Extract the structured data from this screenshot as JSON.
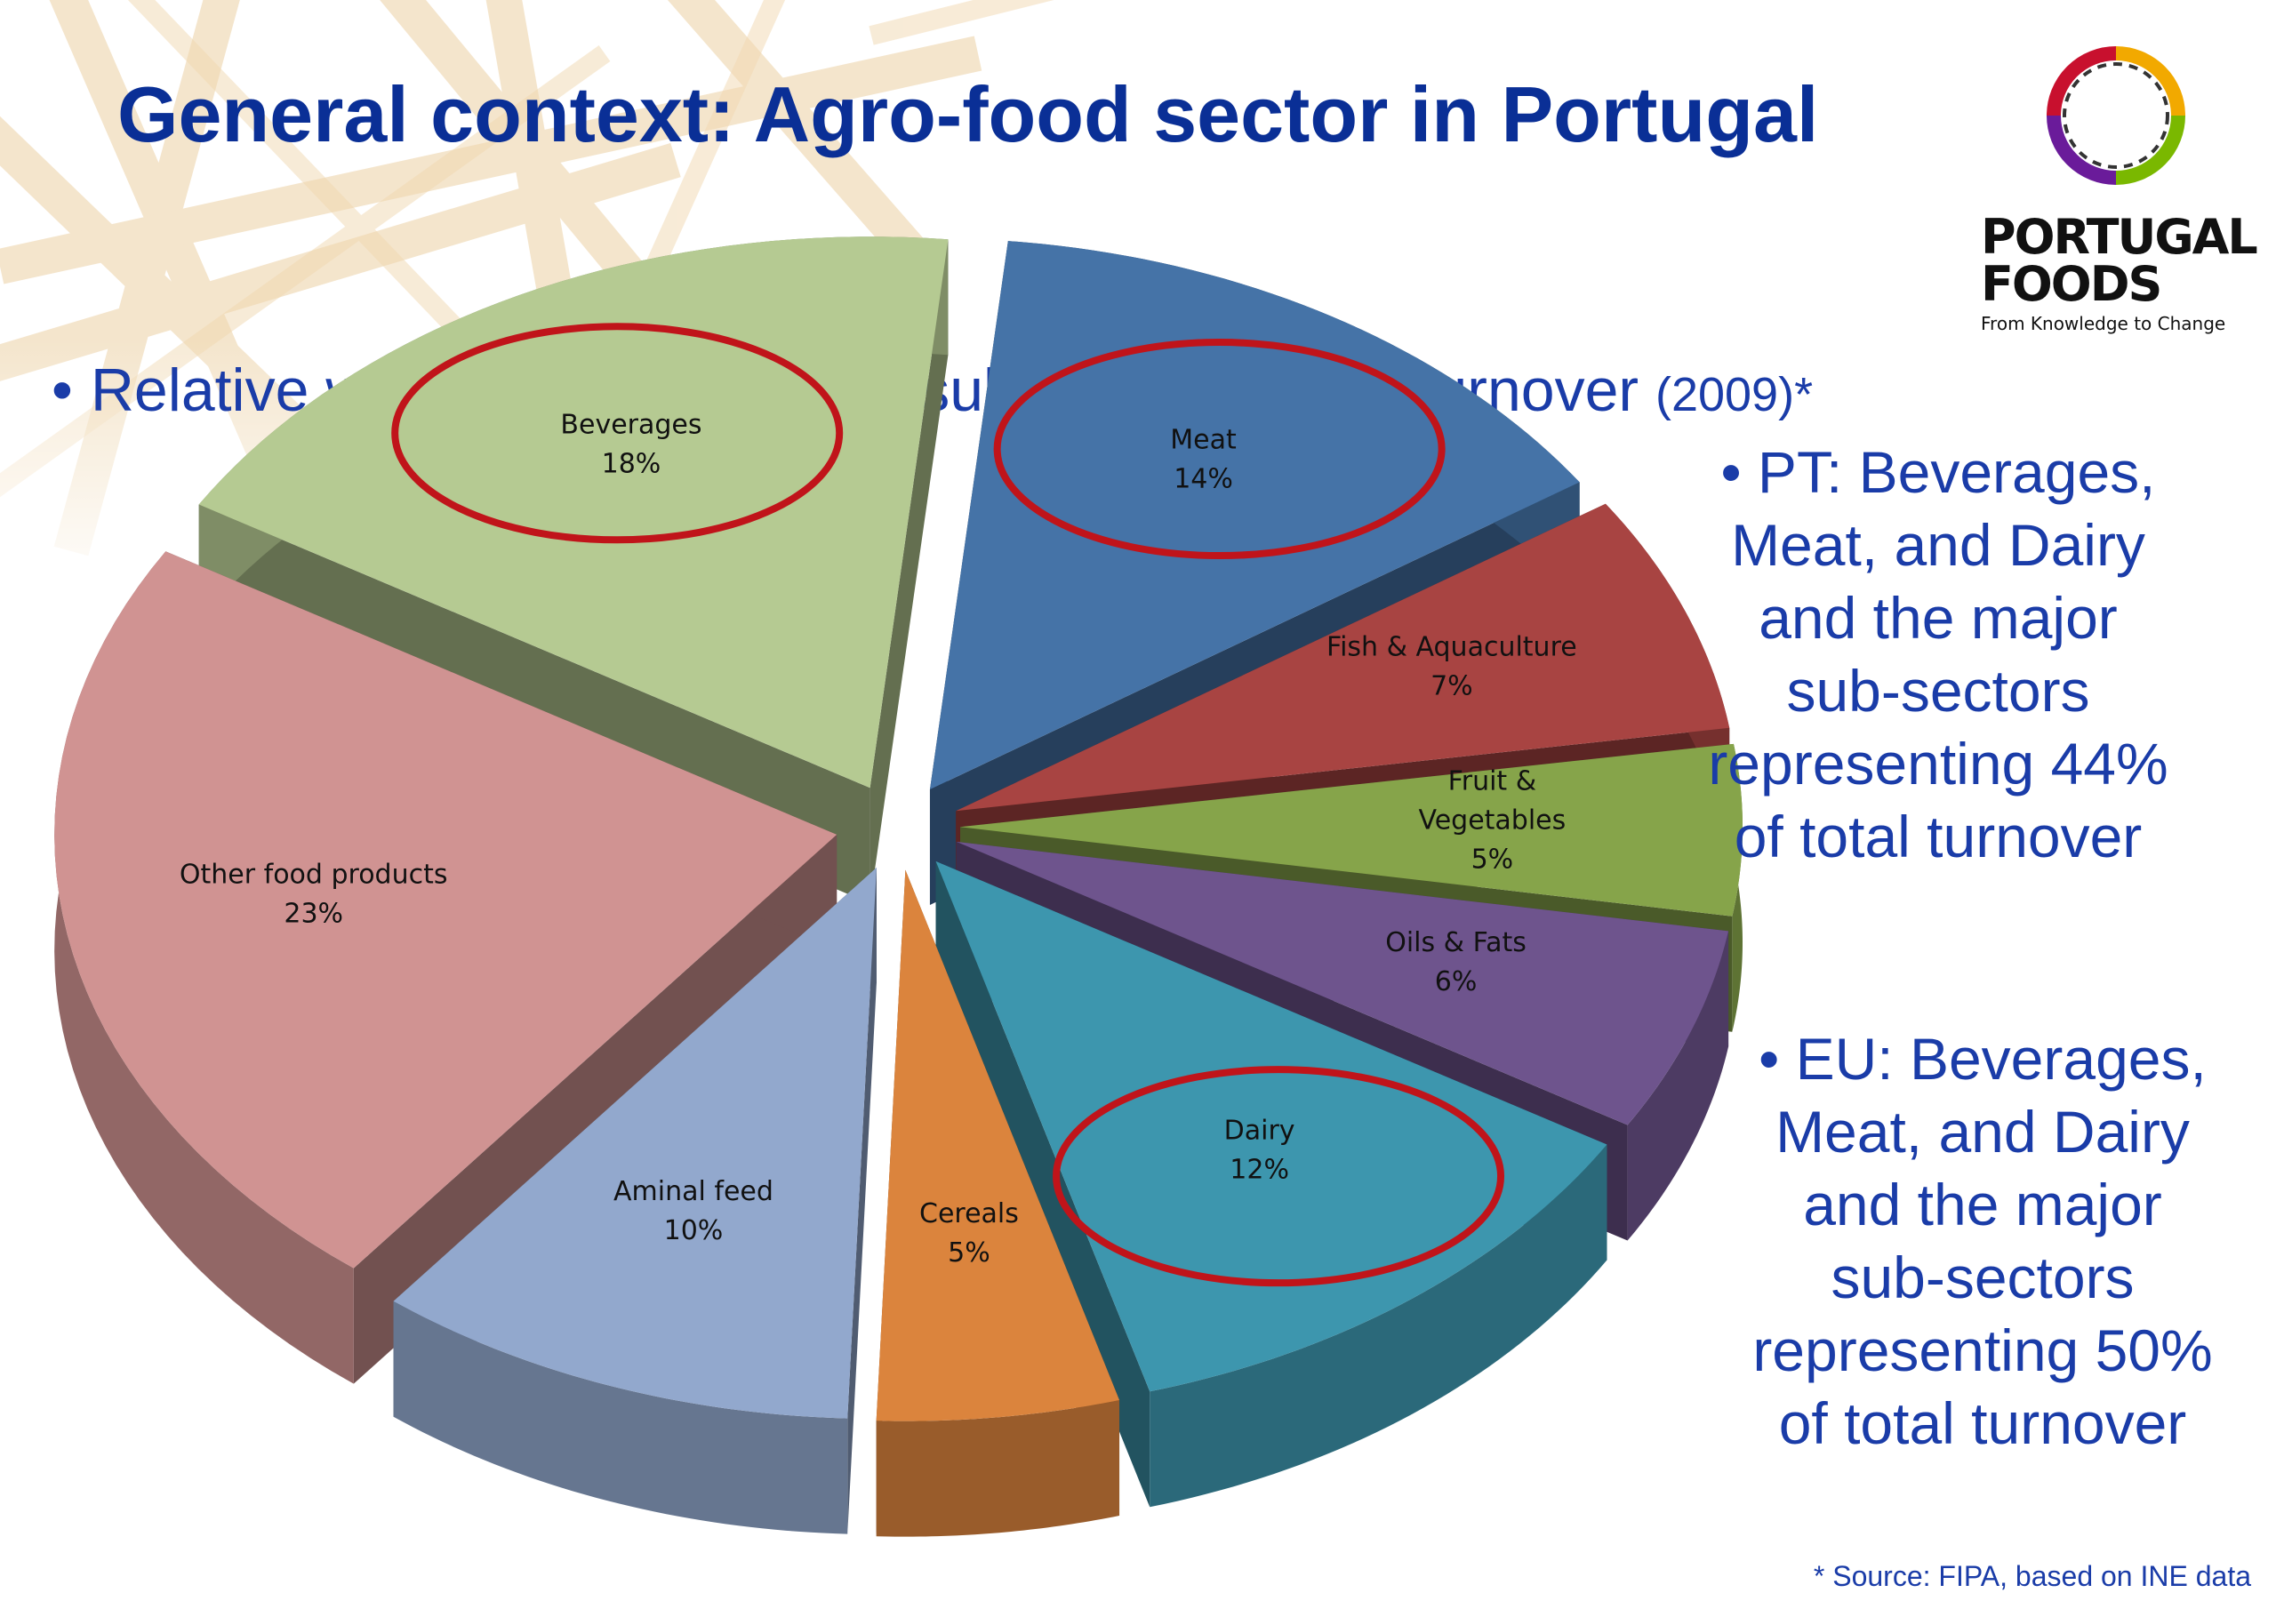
{
  "slide": {
    "title": "General context: Agro-food sector in Portugal",
    "bullet_main": "Relative weight of the different sub-sectors to the turnover",
    "bullet_year": "(2009)*",
    "note_pt": [
      "• PT: Beverages,",
      "Meat, and Dairy",
      "and the major",
      "sub-sectors",
      "representing 44%",
      "of total turnover"
    ],
    "note_eu": [
      "• EU: Beverages,",
      "Meat, and Dairy",
      "and the major",
      "sub-sectors",
      "representing 50%",
      "of total turnover"
    ],
    "source": "* Source: FIPA, based on INE data"
  },
  "logo": {
    "line1": "PORTUGAL",
    "line2": "FOODS",
    "tagline": "From Knowledge to Change"
  },
  "chart_data": {
    "type": "pie",
    "style": "3d-exploded",
    "categories": [
      "Meat",
      "Fish & Aquaculture",
      "Fruit & Vegetables",
      "Oils & Fats",
      "Dairy",
      "Cereals",
      "Aminal feed",
      "Other food products",
      "Beverages"
    ],
    "label_lines": [
      [
        "Meat",
        "14%"
      ],
      [
        "Fish & Aquaculture",
        "7%"
      ],
      [
        "Fruit &",
        "Vegetables",
        "5%"
      ],
      [
        "Oils & Fats",
        "6%"
      ],
      [
        "Dairy",
        "12%"
      ],
      [
        "Cereals",
        "5%"
      ],
      [
        "Aminal feed",
        "10%"
      ],
      [
        "Other food products",
        "23%"
      ],
      [
        "Beverages",
        "18%"
      ]
    ],
    "values": [
      14,
      7,
      5,
      6,
      12,
      5,
      10,
      23,
      18
    ],
    "unit": "%",
    "colors": [
      "#4573a7",
      "#a84442",
      "#86a44a",
      "#6e548d",
      "#3d96ae",
      "#db843d",
      "#92a8cd",
      "#d09392",
      "#b5ca92"
    ],
    "highlighted": [
      "Meat",
      "Dairy",
      "Beverages"
    ],
    "highlight_color": "#c0141a"
  }
}
